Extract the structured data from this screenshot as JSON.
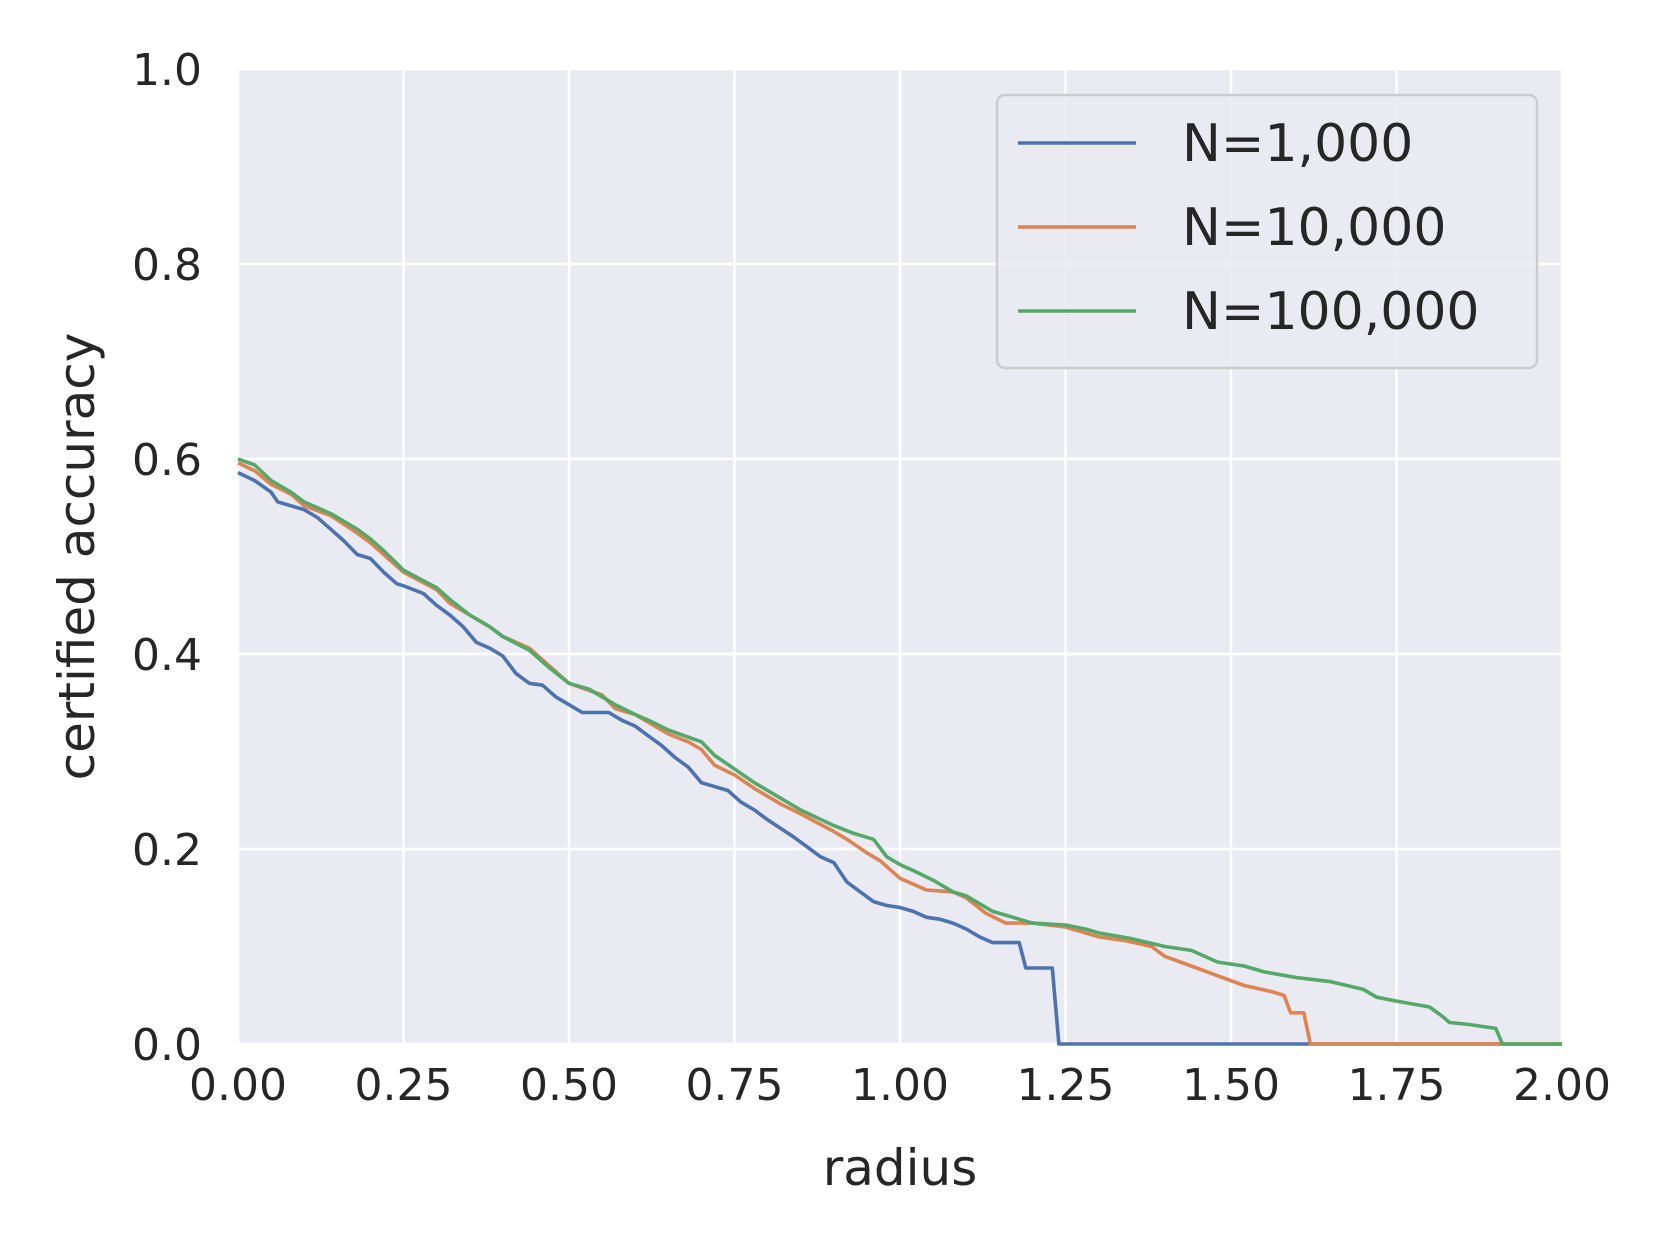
{
  "chart_data": {
    "type": "line",
    "title": "",
    "xlabel": "radius",
    "ylabel": "certified accuracy",
    "xlim": [
      0.0,
      2.0
    ],
    "ylim": [
      0.0,
      1.0
    ],
    "xticks": [
      "0.00",
      "0.25",
      "0.50",
      "0.75",
      "1.00",
      "1.25",
      "1.50",
      "1.75",
      "2.00"
    ],
    "yticks": [
      "0.0",
      "0.2",
      "0.4",
      "0.6",
      "0.8",
      "1.0"
    ],
    "grid": true,
    "legend_position": "top-right",
    "background_color": "#eaeaf2",
    "grid_color": "#ffffff",
    "series": [
      {
        "name": "N=1,000",
        "color": "#4c72b0",
        "points": [
          [
            0.0,
            0.586
          ],
          [
            0.025,
            0.578
          ],
          [
            0.05,
            0.566
          ],
          [
            0.06,
            0.556
          ],
          [
            0.1,
            0.548
          ],
          [
            0.12,
            0.54
          ],
          [
            0.14,
            0.528
          ],
          [
            0.16,
            0.516
          ],
          [
            0.18,
            0.502
          ],
          [
            0.2,
            0.498
          ],
          [
            0.22,
            0.484
          ],
          [
            0.24,
            0.472
          ],
          [
            0.25,
            0.47
          ],
          [
            0.28,
            0.462
          ],
          [
            0.3,
            0.45
          ],
          [
            0.32,
            0.44
          ],
          [
            0.34,
            0.428
          ],
          [
            0.36,
            0.412
          ],
          [
            0.38,
            0.406
          ],
          [
            0.4,
            0.398
          ],
          [
            0.42,
            0.38
          ],
          [
            0.44,
            0.37
          ],
          [
            0.46,
            0.368
          ],
          [
            0.48,
            0.356
          ],
          [
            0.5,
            0.348
          ],
          [
            0.52,
            0.34
          ],
          [
            0.56,
            0.34
          ],
          [
            0.58,
            0.332
          ],
          [
            0.6,
            0.326
          ],
          [
            0.62,
            0.316
          ],
          [
            0.64,
            0.306
          ],
          [
            0.66,
            0.294
          ],
          [
            0.68,
            0.284
          ],
          [
            0.7,
            0.268
          ],
          [
            0.74,
            0.26
          ],
          [
            0.76,
            0.248
          ],
          [
            0.78,
            0.24
          ],
          [
            0.8,
            0.23
          ],
          [
            0.84,
            0.212
          ],
          [
            0.86,
            0.202
          ],
          [
            0.88,
            0.192
          ],
          [
            0.9,
            0.186
          ],
          [
            0.92,
            0.166
          ],
          [
            0.94,
            0.156
          ],
          [
            0.96,
            0.146
          ],
          [
            0.98,
            0.142
          ],
          [
            1.0,
            0.14
          ],
          [
            1.02,
            0.136
          ],
          [
            1.04,
            0.13
          ],
          [
            1.06,
            0.128
          ],
          [
            1.08,
            0.124
          ],
          [
            1.1,
            0.118
          ],
          [
            1.12,
            0.11
          ],
          [
            1.14,
            0.104
          ],
          [
            1.18,
            0.104
          ],
          [
            1.19,
            0.078
          ],
          [
            1.23,
            0.078
          ],
          [
            1.24,
            0.0
          ],
          [
            2.0,
            0.0
          ]
        ]
      },
      {
        "name": "N=10,000",
        "color": "#dd8452",
        "points": [
          [
            0.0,
            0.596
          ],
          [
            0.025,
            0.588
          ],
          [
            0.05,
            0.574
          ],
          [
            0.08,
            0.564
          ],
          [
            0.1,
            0.552
          ],
          [
            0.14,
            0.542
          ],
          [
            0.18,
            0.524
          ],
          [
            0.2,
            0.514
          ],
          [
            0.22,
            0.502
          ],
          [
            0.25,
            0.484
          ],
          [
            0.3,
            0.466
          ],
          [
            0.32,
            0.452
          ],
          [
            0.35,
            0.44
          ],
          [
            0.38,
            0.428
          ],
          [
            0.4,
            0.418
          ],
          [
            0.44,
            0.406
          ],
          [
            0.47,
            0.388
          ],
          [
            0.5,
            0.37
          ],
          [
            0.55,
            0.358
          ],
          [
            0.57,
            0.344
          ],
          [
            0.6,
            0.338
          ],
          [
            0.62,
            0.33
          ],
          [
            0.65,
            0.318
          ],
          [
            0.68,
            0.31
          ],
          [
            0.7,
            0.302
          ],
          [
            0.72,
            0.286
          ],
          [
            0.75,
            0.276
          ],
          [
            0.78,
            0.262
          ],
          [
            0.82,
            0.246
          ],
          [
            0.85,
            0.236
          ],
          [
            0.9,
            0.218
          ],
          [
            0.92,
            0.21
          ],
          [
            0.95,
            0.196
          ],
          [
            0.97,
            0.188
          ],
          [
            1.0,
            0.17
          ],
          [
            1.04,
            0.158
          ],
          [
            1.08,
            0.156
          ],
          [
            1.1,
            0.15
          ],
          [
            1.13,
            0.134
          ],
          [
            1.16,
            0.124
          ],
          [
            1.2,
            0.124
          ],
          [
            1.25,
            0.12
          ],
          [
            1.3,
            0.11
          ],
          [
            1.34,
            0.106
          ],
          [
            1.38,
            0.1
          ],
          [
            1.4,
            0.09
          ],
          [
            1.44,
            0.08
          ],
          [
            1.48,
            0.07
          ],
          [
            1.52,
            0.06
          ],
          [
            1.56,
            0.054
          ],
          [
            1.58,
            0.05
          ],
          [
            1.59,
            0.032
          ],
          [
            1.61,
            0.032
          ],
          [
            1.62,
            0.0
          ],
          [
            2.0,
            0.0
          ]
        ]
      },
      {
        "name": "N=100,000",
        "color": "#55a868",
        "points": [
          [
            0.0,
            0.6
          ],
          [
            0.025,
            0.594
          ],
          [
            0.05,
            0.578
          ],
          [
            0.08,
            0.566
          ],
          [
            0.1,
            0.556
          ],
          [
            0.14,
            0.544
          ],
          [
            0.18,
            0.528
          ],
          [
            0.2,
            0.518
          ],
          [
            0.22,
            0.506
          ],
          [
            0.25,
            0.486
          ],
          [
            0.3,
            0.468
          ],
          [
            0.32,
            0.456
          ],
          [
            0.35,
            0.44
          ],
          [
            0.38,
            0.428
          ],
          [
            0.4,
            0.418
          ],
          [
            0.44,
            0.404
          ],
          [
            0.47,
            0.386
          ],
          [
            0.5,
            0.37
          ],
          [
            0.53,
            0.364
          ],
          [
            0.57,
            0.348
          ],
          [
            0.6,
            0.338
          ],
          [
            0.62,
            0.332
          ],
          [
            0.65,
            0.322
          ],
          [
            0.7,
            0.31
          ],
          [
            0.72,
            0.296
          ],
          [
            0.75,
            0.282
          ],
          [
            0.78,
            0.268
          ],
          [
            0.82,
            0.252
          ],
          [
            0.85,
            0.24
          ],
          [
            0.9,
            0.224
          ],
          [
            0.93,
            0.216
          ],
          [
            0.96,
            0.21
          ],
          [
            0.98,
            0.192
          ],
          [
            1.0,
            0.184
          ],
          [
            1.02,
            0.178
          ],
          [
            1.05,
            0.168
          ],
          [
            1.08,
            0.156
          ],
          [
            1.1,
            0.152
          ],
          [
            1.14,
            0.136
          ],
          [
            1.18,
            0.128
          ],
          [
            1.2,
            0.124
          ],
          [
            1.25,
            0.122
          ],
          [
            1.28,
            0.118
          ],
          [
            1.3,
            0.114
          ],
          [
            1.35,
            0.108
          ],
          [
            1.4,
            0.1
          ],
          [
            1.44,
            0.096
          ],
          [
            1.48,
            0.084
          ],
          [
            1.52,
            0.08
          ],
          [
            1.55,
            0.074
          ],
          [
            1.6,
            0.068
          ],
          [
            1.65,
            0.064
          ],
          [
            1.7,
            0.056
          ],
          [
            1.72,
            0.048
          ],
          [
            1.75,
            0.044
          ],
          [
            1.8,
            0.038
          ],
          [
            1.82,
            0.028
          ],
          [
            1.83,
            0.022
          ],
          [
            1.86,
            0.02
          ],
          [
            1.88,
            0.018
          ],
          [
            1.9,
            0.016
          ],
          [
            1.91,
            0.0
          ],
          [
            2.0,
            0.0
          ]
        ]
      }
    ]
  }
}
